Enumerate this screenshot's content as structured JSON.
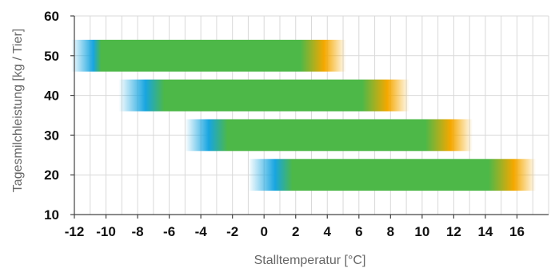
{
  "chart_data": {
    "type": "bar",
    "subtype": "floating-horizontal-gradient",
    "xlabel": "Stalltemperatur [°C]",
    "ylabel": "Tagesmilchleistung [kg / Tier]",
    "xlim": [
      -12,
      18
    ],
    "ylim": [
      10,
      60
    ],
    "xticks": [
      -12,
      -10,
      -8,
      -6,
      -4,
      -2,
      0,
      2,
      4,
      6,
      8,
      10,
      12,
      14,
      16
    ],
    "yticks": [
      10,
      20,
      30,
      40,
      50,
      60
    ],
    "grid": true,
    "bars": [
      {
        "y": 50,
        "cold_fade_start": -12.2,
        "blue": -10.8,
        "optimal_start": -10.3,
        "optimal_end": 2.3,
        "orange": 3.8,
        "warm_fade_end": 5.2
      },
      {
        "y": 40,
        "cold_fade_start": -9.2,
        "blue": -7.5,
        "optimal_start": -6.3,
        "optimal_end": 6.2,
        "orange": 7.8,
        "warm_fade_end": 9.2
      },
      {
        "y": 30,
        "cold_fade_start": -5.0,
        "blue": -3.5,
        "optimal_start": -2.3,
        "optimal_end": 10.2,
        "orange": 11.8,
        "warm_fade_end": 13.2
      },
      {
        "y": 20,
        "cold_fade_start": -1.0,
        "blue": 0.7,
        "optimal_start": 1.8,
        "optimal_end": 14.2,
        "orange": 15.8,
        "warm_fade_end": 17.2
      }
    ],
    "colors": {
      "optimal": "#4db848",
      "cold": "#18a5e0",
      "warm": "#f5a800",
      "grid": "#d9d9d9",
      "axis": "#444444"
    }
  }
}
